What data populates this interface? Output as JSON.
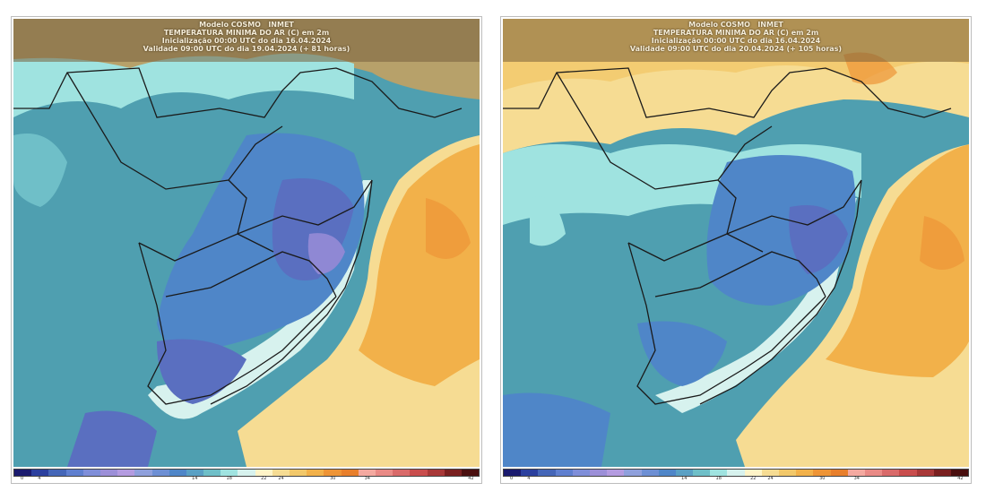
{
  "panels": [
    {
      "id": "left",
      "header": {
        "model": "Modelo COSMO",
        "inmet": "INMET",
        "variable": "TEMPERATURA MINIMA DO AR (C) em 2m",
        "init": "Inicialização 00:00 UTC do dia 16.04.2024",
        "valid": "Validade 09:00 UTC do dia 19.04.2024 (+ 81 horas)"
      }
    },
    {
      "id": "right",
      "header": {
        "model": "Modelo COSMO",
        "inmet": "INMET",
        "variable": "TEMPERATURA MINIMA DO AR (C) em 2m",
        "init": "Inicialização 00:00 UTC do dia 16.04.2024",
        "valid": "Validade 09:00 UTC do dia 20.04.2024 (+ 105 horas)"
      }
    }
  ],
  "colorbar": {
    "colors": [
      "#1a1a6e",
      "#2b3f9e",
      "#4566b8",
      "#5f7fcf",
      "#7f8ed9",
      "#9c8fd8",
      "#b49be0",
      "#8fa0dc",
      "#6d8fd4",
      "#4f86c8",
      "#5aa0c4",
      "#6fbfc8",
      "#9fe3e0",
      "#d7f2ee",
      "#fff4c8",
      "#f6dc93",
      "#f2c86a",
      "#f2b14a",
      "#ee9436",
      "#e87f2c",
      "#f4a9a0",
      "#e98a86",
      "#d96a6a",
      "#c94d4d",
      "#a83838",
      "#7a2020",
      "#4a0f0f"
    ],
    "labels": [
      "0",
      "4",
      "",
      "",
      "",
      "",
      "",
      "",
      "",
      "",
      "14",
      "",
      "18",
      "",
      "22",
      "24",
      "",
      "",
      "30",
      "",
      "34",
      "",
      "",
      "",
      "",
      "",
      "42"
    ]
  },
  "map_colors": {
    "ocean_warm": "#f2b14a",
    "ocean_mild": "#f6dc93",
    "land_cool": "#4f9fb0",
    "land_cold": "#4f86c8",
    "land_colder": "#5a6fc0",
    "land_coldest": "#8f88d4",
    "coast_pale": "#d7f2ee",
    "light_cyan": "#9fe3e0",
    "header_tan": "#c9a15e"
  }
}
